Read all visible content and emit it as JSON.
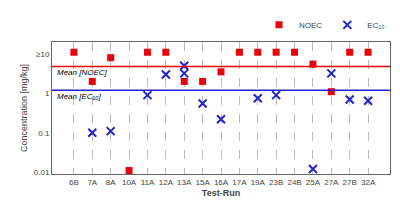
{
  "chart_data": {
    "type": "scatter",
    "xlabel": "Test-Run",
    "ylabel": "Concentration [mg/kg]",
    "categories": [
      "6B",
      "7A",
      "8A",
      "10A",
      "11A",
      "12A",
      "13A",
      "15A",
      "16A",
      "17A",
      "19A",
      "23B",
      "24B",
      "25A",
      "27A",
      "27B",
      "32A"
    ],
    "series": [
      {
        "name": "NOEC",
        "color": "#e8000b",
        "marker": "square",
        "values": [
          11,
          2.0,
          8.0,
          0.011,
          11,
          11,
          2.0,
          2.0,
          3.5,
          11,
          11,
          11,
          11,
          5.5,
          1.1,
          11,
          11
        ]
      },
      {
        "name": "EC₁₀",
        "color": "#2222cc",
        "marker": "x",
        "values": [
          null,
          0.1,
          0.11,
          null,
          0.9,
          null,
          5.0,
          0.55,
          0.22,
          null,
          0.75,
          0.9,
          null,
          0.012,
          3.2,
          0.7,
          0.65
        ]
      },
      {
        "name": "EC₁₀",
        "color": "#2222cc",
        "marker": "x",
        "values": [
          null,
          null,
          null,
          null,
          null,
          3.0,
          3.2,
          null,
          null,
          null,
          null,
          null,
          null,
          null,
          null,
          null,
          null
        ]
      }
    ],
    "mean_lines": [
      {
        "value": 4.8,
        "label": "Mean [NOEC]",
        "color": "#e8000b"
      },
      {
        "value": 1.2,
        "label": "Mean [EC₁₀]",
        "color": "#2222cc"
      }
    ],
    "log": "y",
    "ylim": [
      0.009,
      20
    ],
    "yticks": [
      0.01,
      0.1,
      1,
      {
        "value": 10,
        "label": "≥10"
      }
    ],
    "grid": "x",
    "legend": "top right"
  }
}
